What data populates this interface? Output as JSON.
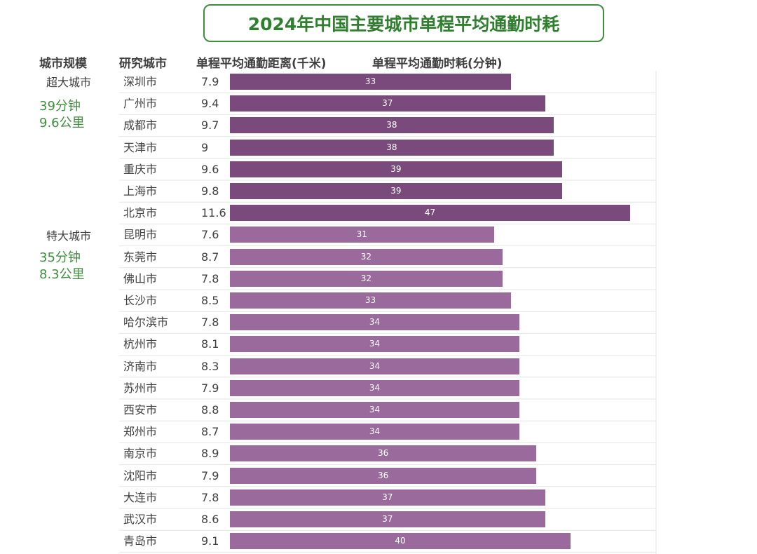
{
  "title": "2024年中国主要城市单程平均通勤时耗",
  "headers": {
    "scale": "城市规模",
    "city": "研究城市",
    "distance": "单程平均通勤距离(千米)",
    "time": "单程平均通勤时耗(分钟)"
  },
  "groups": [
    {
      "name": "超大城市",
      "avg_time": "39分钟",
      "avg_distance": "9.6公里"
    },
    {
      "name": "特大城市",
      "avg_time": "35分钟",
      "avg_distance": "8.3公里"
    }
  ],
  "colors": {
    "title_green": "#2f7f2f",
    "stat_green": "#3e8e3e",
    "super_city_bar": "#7a4a7c",
    "mega_city_bar": "#9a6a9c"
  },
  "chart_data": {
    "type": "bar",
    "orientation": "horizontal",
    "title": "2024年中国主要城市单程平均通勤时耗",
    "xlabel": "单程平均通勤时耗(分钟)",
    "categories": [
      "深圳市",
      "广州市",
      "成都市",
      "天津市",
      "重庆市",
      "上海市",
      "北京市",
      "昆明市",
      "东莞市",
      "佛山市",
      "长沙市",
      "哈尔滨市",
      "杭州市",
      "济南市",
      "苏州市",
      "西安市",
      "郑州市",
      "南京市",
      "沈阳市",
      "大连市",
      "武汉市",
      "青岛市"
    ],
    "group": [
      "超大城市",
      "超大城市",
      "超大城市",
      "超大城市",
      "超大城市",
      "超大城市",
      "超大城市",
      "特大城市",
      "特大城市",
      "特大城市",
      "特大城市",
      "特大城市",
      "特大城市",
      "特大城市",
      "特大城市",
      "特大城市",
      "特大城市",
      "特大城市",
      "特大城市",
      "特大城市",
      "特大城市",
      "特大城市"
    ],
    "distance_km": [
      "7.9",
      "9.4",
      "9.7",
      "9",
      "9.6",
      "9.8",
      "11.6",
      "7.6",
      "8.7",
      "7.8",
      "8.5",
      "7.8",
      "8.1",
      "8.3",
      "7.9",
      "8.8",
      "8.7",
      "8.9",
      "7.9",
      "7.8",
      "8.6",
      "9.1"
    ],
    "values": [
      33,
      37,
      38,
      38,
      39,
      39,
      47,
      31,
      32,
      32,
      33,
      34,
      34,
      34,
      34,
      34,
      34,
      36,
      36,
      37,
      37,
      40
    ],
    "xlim": [
      0,
      50
    ],
    "grid": true
  }
}
